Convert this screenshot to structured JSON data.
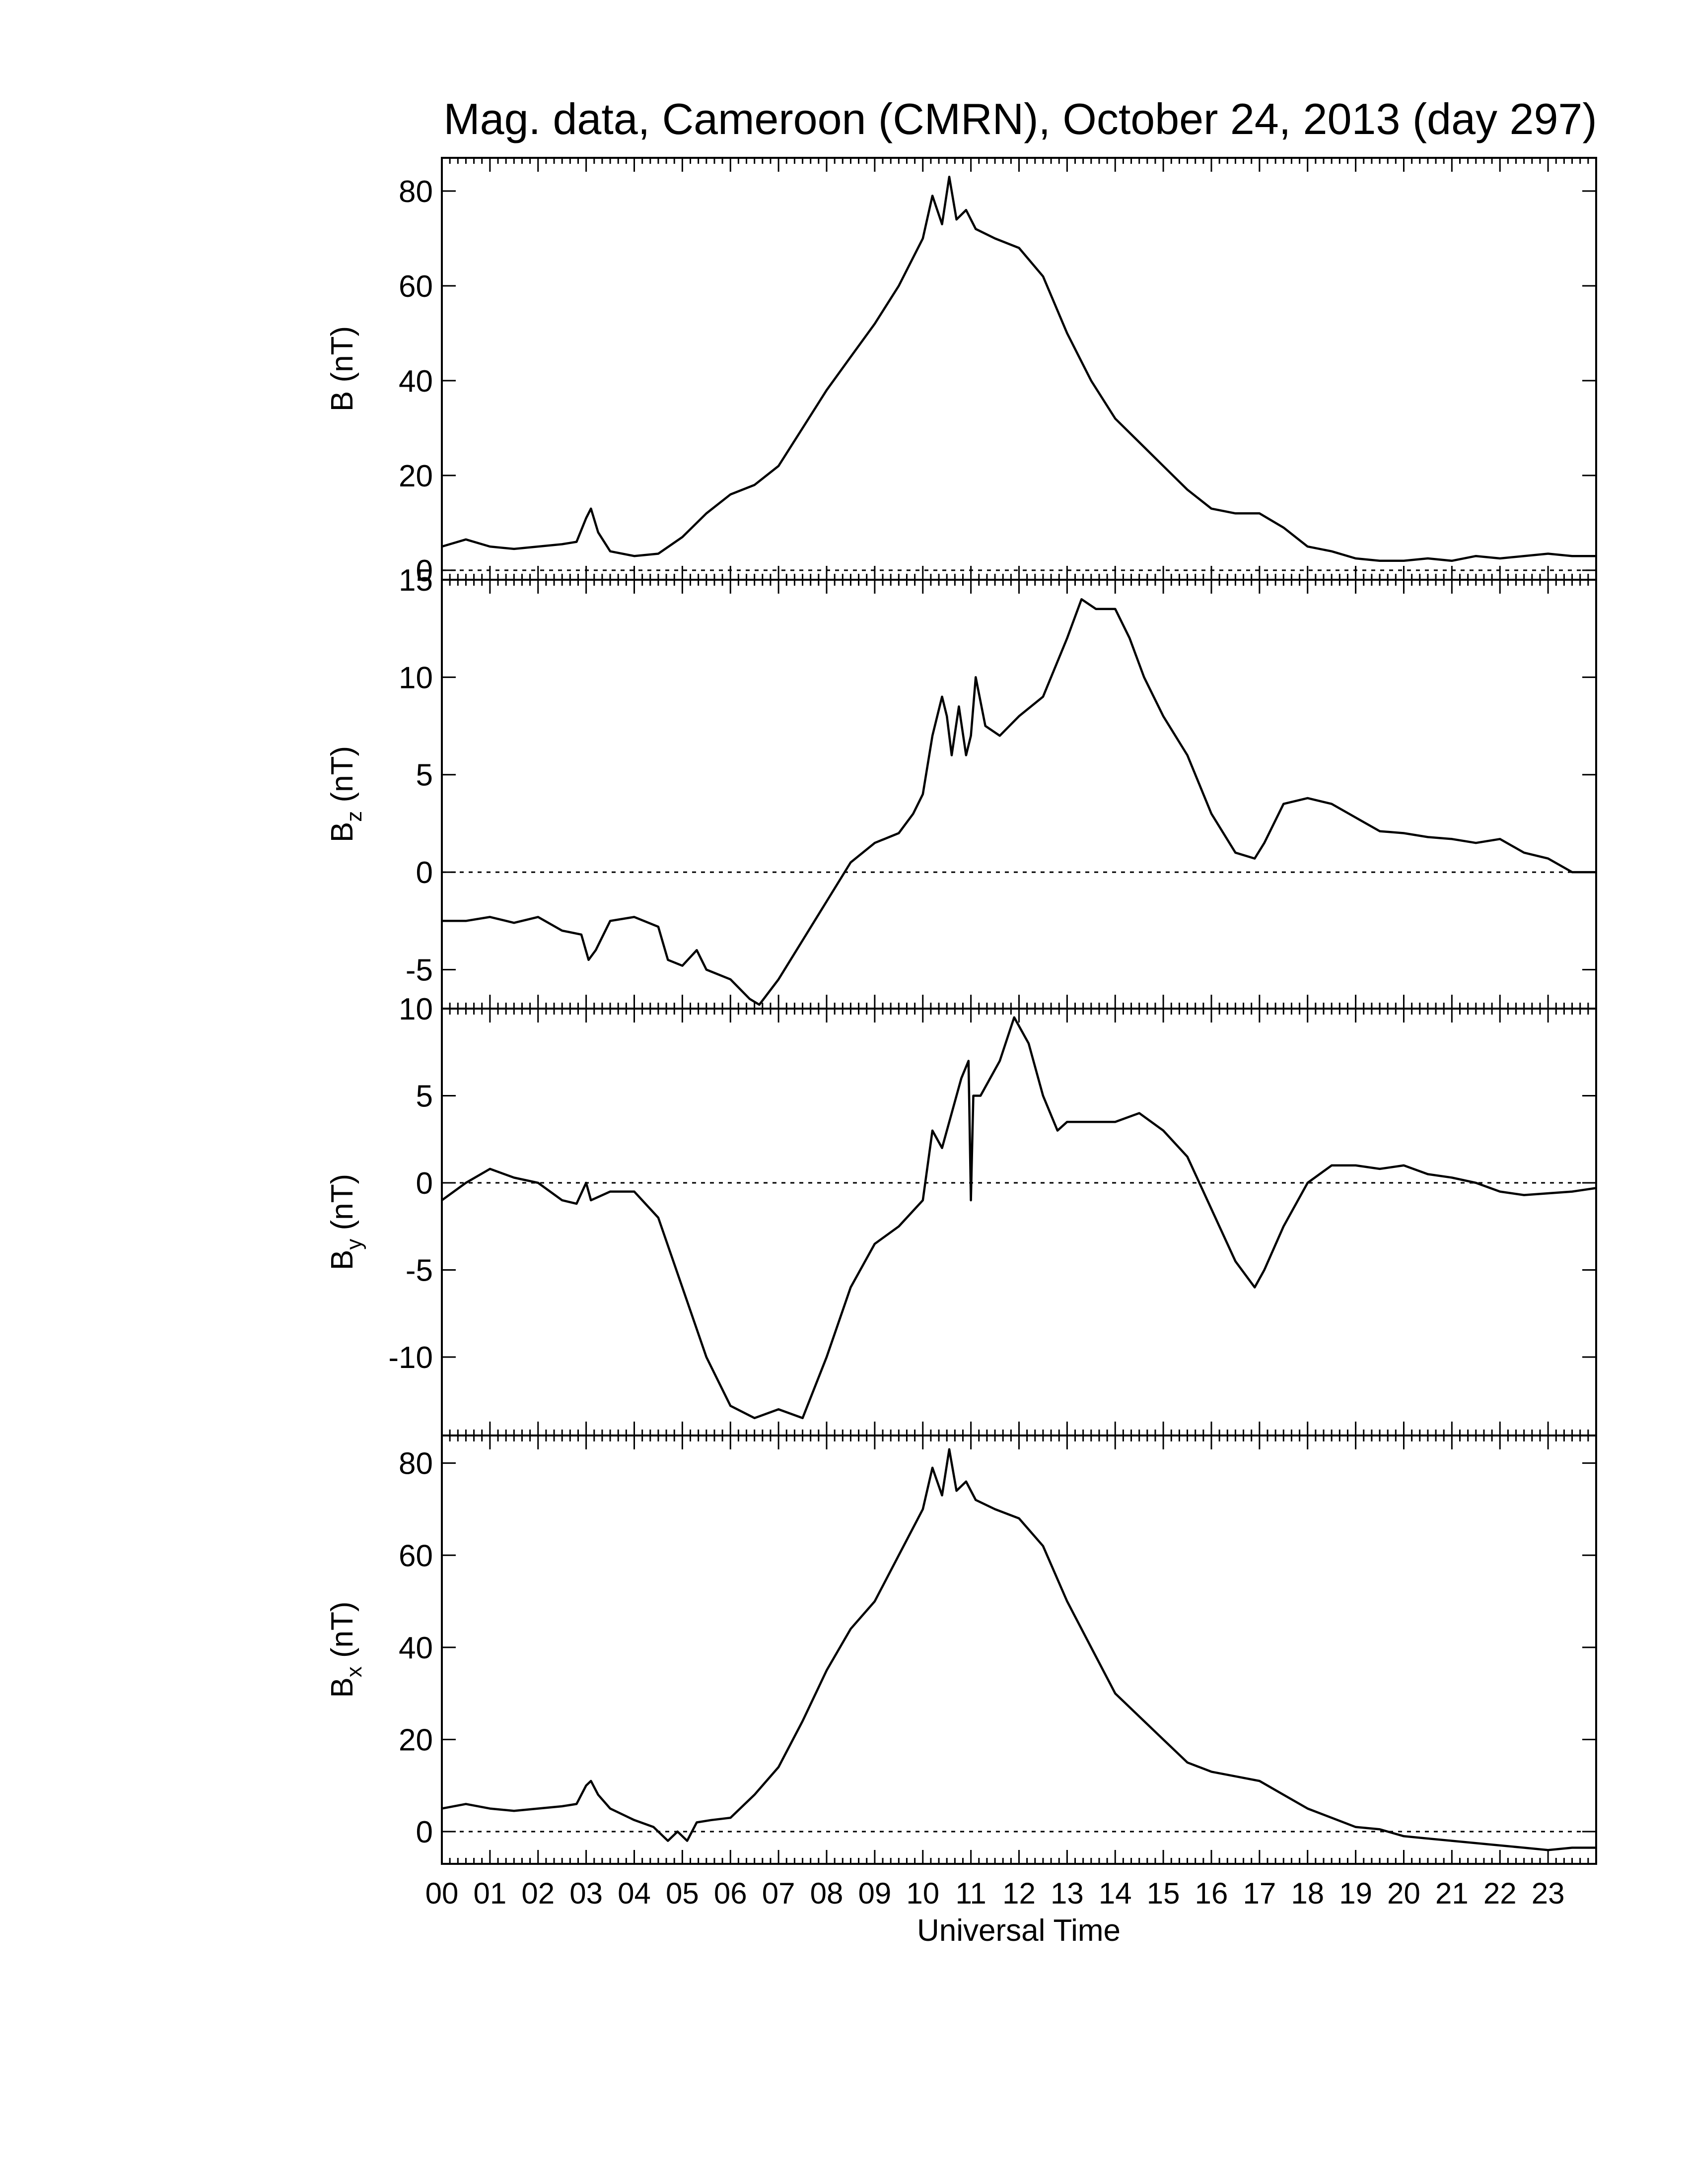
{
  "title": "Mag. data, Cameroon (CMRN), October 24, 2013 (day 297)",
  "colors": {
    "line": "#000000",
    "background": "#ffffff"
  },
  "chart_data": [
    {
      "type": "line",
      "panel": "B",
      "ylabel": "B (nT)",
      "ylabel_main": "B (nT)",
      "ylabel_sub": "",
      "ylabel_tail": "",
      "ylim": [
        -2,
        87
      ],
      "yticks": [
        0,
        20,
        40,
        60,
        80
      ],
      "ytick_labels": [
        "0",
        "20",
        "40",
        "60",
        "80"
      ],
      "zero_line": true,
      "x": [
        0,
        0.5,
        1,
        1.5,
        2,
        2.5,
        2.8,
        3.0,
        3.1,
        3.25,
        3.5,
        4,
        4.5,
        5,
        5.5,
        6,
        6.5,
        7,
        7.5,
        8,
        8.5,
        9,
        9.5,
        10,
        10.2,
        10.4,
        10.55,
        10.7,
        10.9,
        11.1,
        11.5,
        12,
        12.5,
        13,
        13.5,
        14,
        14.5,
        15,
        15.5,
        16,
        16.5,
        17,
        17.5,
        18,
        18.5,
        19,
        19.5,
        20,
        20.5,
        21,
        21.5,
        22,
        22.5,
        23,
        23.5,
        23.99
      ],
      "values": [
        5,
        6.5,
        5,
        4.5,
        5,
        5.5,
        6,
        11,
        13,
        8,
        4,
        3,
        3.5,
        7,
        12,
        16,
        18,
        22,
        30,
        38,
        45,
        52,
        60,
        70,
        79,
        73,
        83,
        74,
        76,
        72,
        70,
        68,
        62,
        50,
        40,
        32,
        27,
        22,
        17,
        13,
        12,
        12,
        9,
        5,
        4,
        2.5,
        2,
        2,
        2.5,
        2,
        3,
        2.5,
        3,
        3.5,
        3,
        3
      ]
    },
    {
      "type": "line",
      "panel": "Bz",
      "ylabel": "Bz (nT)",
      "ylabel_main": "B",
      "ylabel_sub": "z",
      "ylabel_tail": " (nT)",
      "ylim": [
        -7,
        15
      ],
      "yticks": [
        -5,
        0,
        5,
        10,
        15
      ],
      "ytick_labels": [
        "-5",
        "0",
        "5",
        "10",
        "15"
      ],
      "zero_line": true,
      "x": [
        0,
        0.5,
        1,
        1.5,
        2,
        2.5,
        2.9,
        3.05,
        3.2,
        3.5,
        4,
        4.5,
        4.7,
        5.0,
        5.3,
        5.5,
        6,
        6.4,
        6.6,
        7,
        7.5,
        8,
        8.5,
        9,
        9.5,
        9.8,
        10,
        10.2,
        10.4,
        10.5,
        10.6,
        10.75,
        10.9,
        11.0,
        11.1,
        11.3,
        11.6,
        12,
        12.5,
        13,
        13.3,
        13.6,
        14,
        14.3,
        14.6,
        15,
        15.5,
        16,
        16.5,
        16.9,
        17.1,
        17.5,
        18,
        18.5,
        19,
        19.5,
        20,
        20.5,
        21,
        21.5,
        22,
        22.5,
        23,
        23.5,
        23.99
      ],
      "values": [
        -2.5,
        -2.5,
        -2.3,
        -2.6,
        -2.3,
        -3,
        -3.2,
        -4.5,
        -4,
        -2.5,
        -2.3,
        -2.8,
        -4.5,
        -4.8,
        -4,
        -5,
        -5.5,
        -6.5,
        -6.8,
        -5.5,
        -3.5,
        -1.5,
        0.5,
        1.5,
        2,
        3,
        4,
        7,
        9,
        8,
        6,
        8.5,
        6,
        7,
        10,
        7.5,
        7,
        8,
        9,
        12,
        14,
        13.5,
        13.5,
        12,
        10,
        8,
        6,
        3,
        1,
        0.7,
        1.5,
        3.5,
        3.8,
        3.5,
        2.8,
        2.1,
        2,
        1.8,
        1.7,
        1.5,
        1.7,
        1,
        0.7,
        0,
        0
      ]
    },
    {
      "type": "line",
      "panel": "By",
      "ylabel": "By (nT)",
      "ylabel_main": "B",
      "ylabel_sub": "y",
      "ylabel_tail": " (nT)",
      "ylim": [
        -14.5,
        10
      ],
      "yticks": [
        -10,
        -5,
        0,
        5,
        10
      ],
      "ytick_labels": [
        "-10",
        "-5",
        "0",
        "5",
        "10"
      ],
      "zero_line": true,
      "x": [
        0,
        0.5,
        1,
        1.5,
        2,
        2.5,
        2.8,
        3.0,
        3.1,
        3.5,
        4,
        4.5,
        5,
        5.5,
        6,
        6.5,
        7,
        7.5,
        8,
        8.5,
        9,
        9.5,
        10,
        10.2,
        10.4,
        10.6,
        10.8,
        10.95,
        11.0,
        11.05,
        11.2,
        11.6,
        11.9,
        12.2,
        12.5,
        12.8,
        13,
        13.5,
        14,
        14.5,
        15,
        15.5,
        16,
        16.5,
        16.9,
        17.1,
        17.5,
        18,
        18.5,
        19,
        19.5,
        20,
        20.5,
        21,
        21.5,
        22,
        22.5,
        23,
        23.5,
        23.99
      ],
      "values": [
        -1,
        0,
        0.8,
        0.3,
        0,
        -1,
        -1.2,
        0,
        -1,
        -0.5,
        -0.5,
        -2,
        -6,
        -10,
        -12.8,
        -13.5,
        -13,
        -13.5,
        -10,
        -6,
        -3.5,
        -2.5,
        -1,
        3,
        2,
        4,
        6,
        7,
        -1,
        5,
        5,
        7,
        9.5,
        8,
        5,
        3,
        3.5,
        3.5,
        3.5,
        4,
        3,
        1.5,
        -1.5,
        -4.5,
        -6,
        -5,
        -2.5,
        0,
        1,
        1,
        0.8,
        1,
        0.5,
        0.3,
        0,
        -0.5,
        -0.7,
        -0.6,
        -0.5,
        -0.3
      ]
    },
    {
      "type": "line",
      "panel": "Bx",
      "ylabel": "Bx (nT)",
      "ylabel_main": "B",
      "ylabel_sub": "x",
      "ylabel_tail": " (nT)",
      "ylim": [
        -7,
        86
      ],
      "yticks": [
        0,
        20,
        40,
        60,
        80
      ],
      "ytick_labels": [
        "0",
        "20",
        "40",
        "60",
        "80"
      ],
      "zero_line": true,
      "x": [
        0,
        0.5,
        1,
        1.5,
        2,
        2.5,
        2.8,
        3.0,
        3.1,
        3.25,
        3.5,
        4,
        4.4,
        4.7,
        4.9,
        5.1,
        5.3,
        5.6,
        6,
        6.5,
        7,
        7.5,
        8,
        8.5,
        9,
        9.5,
        10,
        10.2,
        10.4,
        10.55,
        10.7,
        10.9,
        11.1,
        11.5,
        12,
        12.5,
        13,
        13.5,
        14,
        14.5,
        15,
        15.5,
        16,
        16.5,
        17,
        17.5,
        18,
        18.5,
        19,
        19.5,
        20,
        20.5,
        21,
        21.5,
        22,
        22.5,
        23,
        23.5,
        23.99
      ],
      "values": [
        5,
        6,
        5,
        4.5,
        5,
        5.5,
        6,
        10,
        11,
        8,
        5,
        2.5,
        1,
        -2,
        0,
        -2,
        2,
        2.5,
        3,
        8,
        14,
        24,
        35,
        44,
        50,
        60,
        70,
        79,
        73,
        83,
        74,
        76,
        72,
        70,
        68,
        62,
        50,
        40,
        30,
        25,
        20,
        15,
        13,
        12,
        11,
        8,
        5,
        3,
        1,
        0.5,
        -1,
        -1.5,
        -2,
        -2.5,
        -3,
        -3.5,
        -4,
        -3.5,
        -3.5
      ]
    }
  ],
  "x_axis": {
    "xlabel": "Universal Time",
    "xlim": [
      0,
      24
    ],
    "tick_labels": [
      "00",
      "01",
      "02",
      "03",
      "04",
      "05",
      "06",
      "07",
      "08",
      "09",
      "10",
      "11",
      "12",
      "13",
      "14",
      "15",
      "16",
      "17",
      "18",
      "19",
      "20",
      "21",
      "22",
      "23"
    ]
  }
}
